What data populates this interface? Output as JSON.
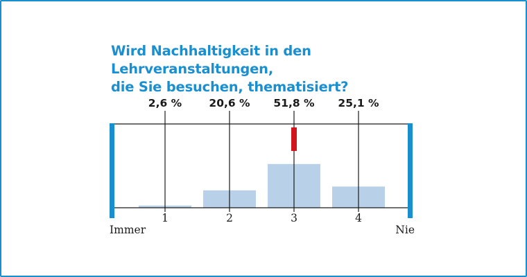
{
  "colors": {
    "accent": "#1a8fd0",
    "bar_fill": "#b8d1e8",
    "mean_marker": "#d0171c",
    "axis": "#1a1a1a",
    "text": "#1a1a1a"
  },
  "chart_data": {
    "type": "bar",
    "title_lines": [
      "Wird Nachhaltigkeit in den Lehrveranstaltungen,",
      "die Sie besuchen, thematisiert?"
    ],
    "categories": [
      "1",
      "2",
      "3",
      "4"
    ],
    "values": [
      2.6,
      20.6,
      51.8,
      25.1
    ],
    "value_labels": [
      "2,6 %",
      "20,6 %",
      "51,8 %",
      "25,1 %"
    ],
    "scale_left_label": "Immer",
    "scale_right_label": "Nie",
    "mean_marker_value": 3,
    "ylim": [
      0,
      100
    ],
    "grid": false,
    "legend": "none"
  }
}
